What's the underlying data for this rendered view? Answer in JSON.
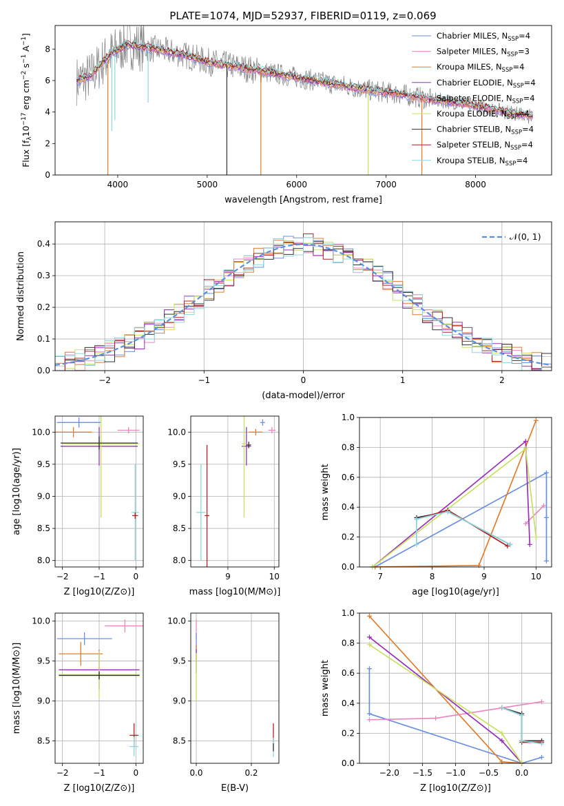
{
  "figure_title": "PLATE=1074, MJD=52937, FIBERID=0119, z=0.069",
  "colors": {
    "Chabrier MILES": "#6a8fe0",
    "Salpeter MILES": "#e889c0",
    "Kroupa MILES": "#e07c2a",
    "Chabrier ELODIE": "#9a30b8",
    "Salpeter ELODIE": "#e889c0",
    "Kroupa ELODIE": "#c8e060",
    "Chabrier STELIB": "#303030",
    "Salpeter STELIB": "#b02020",
    "Kroupa STELIB": "#88d8e0",
    "observed": "#808080",
    "gaussian": "#5b8ee0"
  },
  "chart_data": [
    {
      "id": "spectrum",
      "type": "line",
      "xlabel": "wavelength [Angstrom, rest frame]",
      "ylabel": "Flux [f_λ 10^-17 erg cm^-2 s^-1 A^-1]",
      "xlim": [
        3300,
        8850
      ],
      "ylim": [
        0,
        9.5
      ],
      "xticks": [
        4000,
        5000,
        6000,
        7000,
        8000
      ],
      "yticks": [
        0,
        2,
        4,
        6,
        8
      ],
      "grid": false,
      "legend_position": "right",
      "legend": [
        {
          "name": "Chabrier MILES",
          "sub": "SSP",
          "n": "=4"
        },
        {
          "name": "Salpeter MILES",
          "sub": "SSP",
          "n": "=3"
        },
        {
          "name": "Kroupa MILES",
          "sub": "SSP",
          "n": "=4"
        },
        {
          "name": "Chabrier ELODIE",
          "sub": "SSP",
          "n": "=4"
        },
        {
          "name": "Salpeter ELODIE",
          "sub": "SSP",
          "n": "=4"
        },
        {
          "name": "Kroupa ELODIE",
          "sub": "SSP",
          "n": "=4"
        },
        {
          "name": "Chabrier STELIB",
          "sub": "SSP",
          "n": "=4"
        },
        {
          "name": "Salpeter STELIB",
          "sub": "SSP",
          "n": "=4"
        },
        {
          "name": "Kroupa STELIB",
          "sub": "SSP",
          "n": "=4"
        }
      ],
      "continuum": {
        "x": [
          3560,
          3700,
          3900,
          4100,
          4400,
          4700,
          5000,
          5300,
          5600,
          6000,
          6400,
          6800,
          7200,
          7500,
          7800,
          8100,
          8400,
          8600
        ],
        "y": [
          6.0,
          6.3,
          7.6,
          8.3,
          8.0,
          7.7,
          7.2,
          6.9,
          6.6,
          6.2,
          5.8,
          5.4,
          5.1,
          4.8,
          4.6,
          4.3,
          3.95,
          3.75
        ]
      },
      "absorption_dips": [
        {
          "series": "Kroupa STELIB",
          "x": 3934,
          "y": 2.8
        },
        {
          "series": "Kroupa STELIB",
          "x": 3968,
          "y": 3.5
        },
        {
          "series": "Kroupa MILES",
          "x": 3890,
          "y": 0
        },
        {
          "series": "Kroupa STELIB",
          "x": 4340,
          "y": 4.6
        },
        {
          "series": "Chabrier STELIB",
          "x": 5220,
          "y": 0
        },
        {
          "series": "Kroupa MILES",
          "x": 5600,
          "y": 0
        },
        {
          "series": "Kroupa ELODIE",
          "x": 6800,
          "y": 0
        },
        {
          "series": "Kroupa MILES",
          "x": 7400,
          "y": 0
        }
      ]
    },
    {
      "id": "residuals",
      "type": "step",
      "xlabel": "(data-model)/error",
      "ylabel": "Normed distribution",
      "xlim": [
        -2.5,
        2.5
      ],
      "ylim": [
        0,
        0.47
      ],
      "xticks": [
        -2,
        -1,
        0,
        1,
        2
      ],
      "yticks": [
        0.0,
        0.1,
        0.2,
        0.3,
        0.4
      ],
      "grid": true,
      "legend_position": "top-right",
      "reference_label": "𝒩(0, 1)",
      "bins": {
        "start": -2.5,
        "width": 0.1,
        "count": 50
      },
      "series_order": [
        "Chabrier MILES",
        "Salpeter MILES",
        "Kroupa MILES",
        "Chabrier ELODIE",
        "Kroupa ELODIE",
        "Chabrier STELIB",
        "Salpeter STELIB",
        "Kroupa STELIB"
      ]
    },
    {
      "id": "age_vs_Z",
      "type": "errorbar",
      "xlabel": "Z [log10(Z/Z⊙)]",
      "ylabel": "age [log10(age/yr)]",
      "xlim": [
        -2.2,
        0.2
      ],
      "ylim": [
        7.9,
        10.25
      ],
      "xticks": [
        -2,
        -1,
        0
      ],
      "yticks": [
        8.0,
        8.5,
        9.0,
        9.5,
        10.0
      ],
      "grid": true,
      "points": [
        {
          "series": "Chabrier MILES",
          "x": -1.55,
          "y": 10.15,
          "xerr": 0.6,
          "yerr": 0.08
        },
        {
          "series": "Kroupa MILES",
          "x": -1.7,
          "y": 10.0,
          "xerr": 0.5,
          "yerr": 0.08
        },
        {
          "series": "Salpeter MILES",
          "x": -0.2,
          "y": 10.03,
          "xerr": 0.3,
          "yerr": 0.05
        },
        {
          "series": "Chabrier ELODIE",
          "x": -1.0,
          "y": 9.78,
          "xerr": 1.05,
          "yerr": 0.3
        },
        {
          "series": "Kroupa ELODIE",
          "x": -0.95,
          "y": 9.82,
          "xerr": 1.05,
          "yerr": 1.15
        },
        {
          "series": "Chabrier STELIB",
          "x": -1.0,
          "y": 9.83,
          "xerr": 1.05,
          "yerr": 0.1
        },
        {
          "series": "Kroupa STELIB",
          "x": -0.02,
          "y": 8.75,
          "xerr": 0.1,
          "yerr": 0.75
        },
        {
          "series": "Salpeter STELIB",
          "x": -0.02,
          "y": 8.7,
          "xerr": 0.08,
          "yerr": 0.05
        }
      ]
    },
    {
      "id": "age_vs_mass",
      "type": "errorbar",
      "xlabel": "mass [log10(M/M⊙)]",
      "ylabel": "",
      "xlim": [
        8.2,
        10.1
      ],
      "ylim": [
        7.9,
        10.25
      ],
      "xticks": [
        9,
        10
      ],
      "yticks": [
        8.0,
        8.5,
        9.0,
        9.5,
        10.0
      ],
      "grid": true,
      "points": [
        {
          "series": "Chabrier MILES",
          "x": 9.75,
          "y": 10.15,
          "xerr": 0.05,
          "yerr": 0.05
        },
        {
          "series": "Kroupa MILES",
          "x": 9.6,
          "y": 10.0,
          "xerr": 0.15,
          "yerr": 0.05
        },
        {
          "series": "Salpeter MILES",
          "x": 9.95,
          "y": 10.03,
          "xerr": 0.08,
          "yerr": 0.05
        },
        {
          "series": "Chabrier ELODIE",
          "x": 9.4,
          "y": 9.78,
          "xerr": 0.1,
          "yerr": 0.3
        },
        {
          "series": "Kroupa ELODIE",
          "x": 9.35,
          "y": 9.82,
          "xerr": 0.05,
          "yerr": 1.15
        },
        {
          "series": "Chabrier STELIB",
          "x": 9.45,
          "y": 9.8,
          "xerr": 0.05,
          "yerr": 0.05
        },
        {
          "series": "Kroupa STELIB",
          "x": 8.42,
          "y": 8.75,
          "xerr": 0.1,
          "yerr": 0.75
        },
        {
          "series": "Salpeter STELIB",
          "x": 8.55,
          "y": 8.7,
          "xerr": 0.05,
          "yerr": 1.1
        }
      ]
    },
    {
      "id": "weight_vs_age",
      "type": "line",
      "xlabel": "age [log10(age/yr)]",
      "ylabel": "mass weight",
      "xlim": [
        6.6,
        10.3
      ],
      "ylim": [
        0,
        1.0
      ],
      "xticks": [
        7,
        8,
        9,
        10
      ],
      "yticks": [
        0.0,
        0.2,
        0.4,
        0.6,
        0.8,
        1.0
      ],
      "grid": true,
      "series": [
        {
          "name": "Chabrier MILES",
          "x": [
            6.9,
            10.2,
            10.2,
            10.2
          ],
          "y": [
            0.0,
            0.63,
            0.33,
            0.04
          ]
        },
        {
          "name": "Kroupa MILES",
          "x": [
            6.9,
            8.9,
            10.0
          ],
          "y": [
            0.0,
            0.01,
            0.98
          ]
        },
        {
          "name": "Salpeter MILES",
          "x": [
            9.8,
            10.15
          ],
          "y": [
            0.29,
            0.41
          ]
        },
        {
          "name": "Chabrier ELODIE",
          "x": [
            6.85,
            9.8,
            9.88
          ],
          "y": [
            0.0,
            0.84,
            0.15
          ]
        },
        {
          "name": "Kroupa ELODIE",
          "x": [
            6.85,
            9.8,
            10.0
          ],
          "y": [
            0.0,
            0.79,
            0.2
          ]
        },
        {
          "name": "Chabrier STELIB",
          "x": [
            7.7,
            8.3,
            9.5
          ],
          "y": [
            0.33,
            0.37,
            0.15
          ]
        },
        {
          "name": "Salpeter STELIB",
          "x": [
            7.7,
            8.3,
            9.45
          ],
          "y": [
            0.32,
            0.38,
            0.14
          ]
        },
        {
          "name": "Kroupa STELIB",
          "x": [
            7.7,
            7.7,
            8.3,
            9.5
          ],
          "y": [
            0.15,
            0.32,
            0.37,
            0.15
          ]
        }
      ]
    },
    {
      "id": "mass_vs_Z",
      "type": "errorbar",
      "xlabel": "Z [log10(Z/Z⊙)]",
      "ylabel": "mass [log10(M/M⊙)]",
      "xlim": [
        -2.2,
        0.2
      ],
      "ylim": [
        8.22,
        10.1
      ],
      "xticks": [
        -2,
        -1,
        0
      ],
      "yticks": [
        8.5,
        9.0,
        9.5,
        10.0
      ],
      "grid": true,
      "points": [
        {
          "series": "Salpeter MILES",
          "x": -0.3,
          "y": 9.94,
          "xerr": 0.55,
          "yerr": 0.08
        },
        {
          "series": "Chabrier MILES",
          "x": -1.4,
          "y": 9.78,
          "xerr": 0.75,
          "yerr": 0.08
        },
        {
          "series": "Kroupa MILES",
          "x": -1.5,
          "y": 9.59,
          "xerr": 0.6,
          "yerr": 0.15
        },
        {
          "series": "Chabrier ELODIE",
          "x": -1.0,
          "y": 9.39,
          "xerr": 1.1,
          "yerr": 0.25
        },
        {
          "series": "Kroupa ELODIE",
          "x": -1.0,
          "y": 9.33,
          "xerr": 1.1,
          "yerr": 0.3
        },
        {
          "series": "Chabrier STELIB",
          "x": -1.0,
          "y": 9.32,
          "xerr": 1.1,
          "yerr": 0.05
        },
        {
          "series": "Salpeter STELIB",
          "x": -0.05,
          "y": 8.57,
          "xerr": 0.12,
          "yerr": 0.15
        },
        {
          "series": "Kroupa STELIB",
          "x": -0.05,
          "y": 8.43,
          "xerr": 0.12,
          "yerr": 0.12
        }
      ]
    },
    {
      "id": "mass_vs_EBV",
      "type": "errorbar",
      "xlabel": "E(B-V)",
      "ylabel": "",
      "xlim": [
        -0.02,
        0.3
      ],
      "ylim": [
        8.22,
        10.1
      ],
      "xticks": [
        0.0,
        0.2
      ],
      "yticks": [
        8.5,
        9.0,
        9.5,
        10.0
      ],
      "grid": true,
      "points": [
        {
          "series": "Salpeter MILES",
          "x": 0.0,
          "y": 9.9,
          "xerr": 0.0,
          "yerr": 0.12
        },
        {
          "series": "Chabrier MILES",
          "x": 0.0,
          "y": 9.75,
          "xerr": 0.0,
          "yerr": 0.1
        },
        {
          "series": "Kroupa MILES",
          "x": 0.0,
          "y": 9.6,
          "xerr": 0.0,
          "yerr": 0.1
        },
        {
          "series": "Chabrier ELODIE",
          "x": 0.0,
          "y": 9.5,
          "xerr": 0.0,
          "yerr": 0.15
        },
        {
          "series": "Kroupa ELODIE",
          "x": 0.0,
          "y": 9.3,
          "xerr": 0.0,
          "yerr": 0.3
        },
        {
          "series": "Salpeter STELIB",
          "x": 0.28,
          "y": 8.6,
          "xerr": 0.0,
          "yerr": 0.12
        },
        {
          "series": "Kroupa STELIB",
          "x": 0.28,
          "y": 8.42,
          "xerr": 0.0,
          "yerr": 0.12
        },
        {
          "series": "Chabrier STELIB",
          "x": 0.28,
          "y": 8.42,
          "xerr": 0.0,
          "yerr": 0.05
        }
      ]
    },
    {
      "id": "weight_vs_Z",
      "type": "line",
      "xlabel": "Z [log10(Z/Z⊙)]",
      "ylabel": "mass weight",
      "xlim": [
        -2.45,
        0.45
      ],
      "ylim": [
        0,
        1.0
      ],
      "xticks": [
        -2.0,
        -1.5,
        -1.0,
        -0.5,
        0.0
      ],
      "yticks": [
        0.0,
        0.2,
        0.4,
        0.6,
        0.8,
        1.0
      ],
      "grid": true,
      "series": [
        {
          "name": "Chabrier MILES",
          "x": [
            -2.3,
            -2.3,
            0.0,
            0.3
          ],
          "y": [
            0.63,
            0.33,
            0.0,
            0.04
          ]
        },
        {
          "name": "Kroupa MILES",
          "x": [
            -2.3,
            -0.3,
            0.0
          ],
          "y": [
            0.98,
            0.01,
            0.0
          ]
        },
        {
          "name": "Salpeter MILES",
          "x": [
            -2.3,
            -1.3,
            0.3
          ],
          "y": [
            0.29,
            0.3,
            0.41
          ]
        },
        {
          "name": "Chabrier ELODIE",
          "x": [
            -2.3,
            -0.3,
            0.0
          ],
          "y": [
            0.84,
            0.15,
            0.0
          ]
        },
        {
          "name": "Kroupa ELODIE",
          "x": [
            -2.3,
            -0.3,
            0.0
          ],
          "y": [
            0.79,
            0.2,
            0.0
          ]
        },
        {
          "name": "Chabrier STELIB",
          "x": [
            -0.3,
            0.0,
            0.0,
            0.3
          ],
          "y": [
            0.37,
            0.33,
            0.15,
            0.15
          ]
        },
        {
          "name": "Salpeter STELIB",
          "x": [
            -0.3,
            0.0,
            0.0,
            0.3
          ],
          "y": [
            0.37,
            0.32,
            0.14,
            0.14
          ]
        },
        {
          "name": "Kroupa STELIB",
          "x": [
            -0.3,
            0.0,
            0.0,
            0.3
          ],
          "y": [
            0.37,
            0.32,
            0.15,
            0.13
          ]
        }
      ]
    }
  ]
}
